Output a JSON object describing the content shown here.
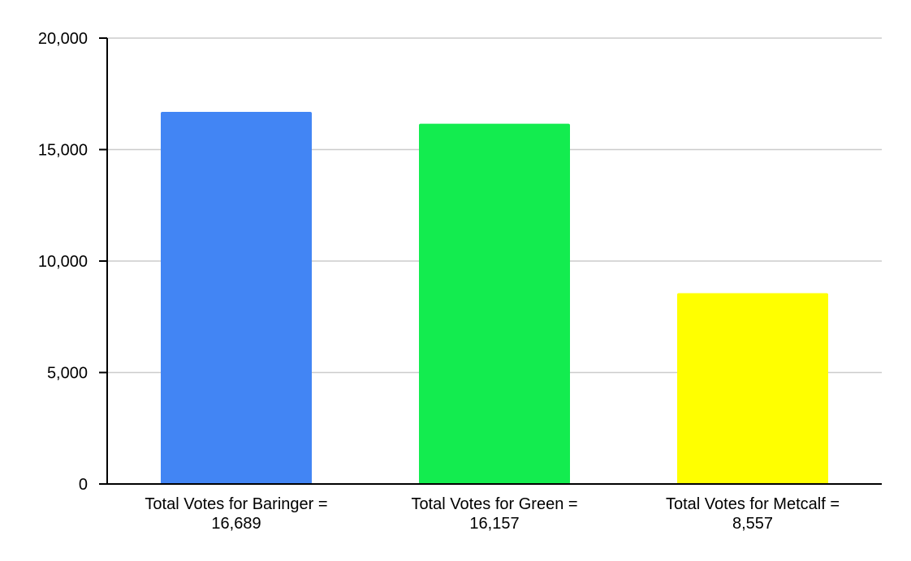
{
  "chart_data": {
    "type": "bar",
    "categories": [
      [
        "Total Votes for Baringer =",
        "16,689"
      ],
      [
        "Total Votes for Green =",
        "16,157"
      ],
      [
        "Total Votes for Metcalf =",
        "8,557"
      ]
    ],
    "values": [
      16689,
      16157,
      8557
    ],
    "colors": [
      "#4285f4",
      "#13ec4f",
      "#ffff00"
    ],
    "ylim": [
      0,
      20000
    ],
    "yticks": [
      0,
      5000,
      10000,
      15000,
      20000
    ],
    "ytick_labels": [
      "0",
      "5,000",
      "10,000",
      "15,000",
      "20,000"
    ],
    "grid": true,
    "title": "",
    "xlabel": "",
    "ylabel": ""
  }
}
